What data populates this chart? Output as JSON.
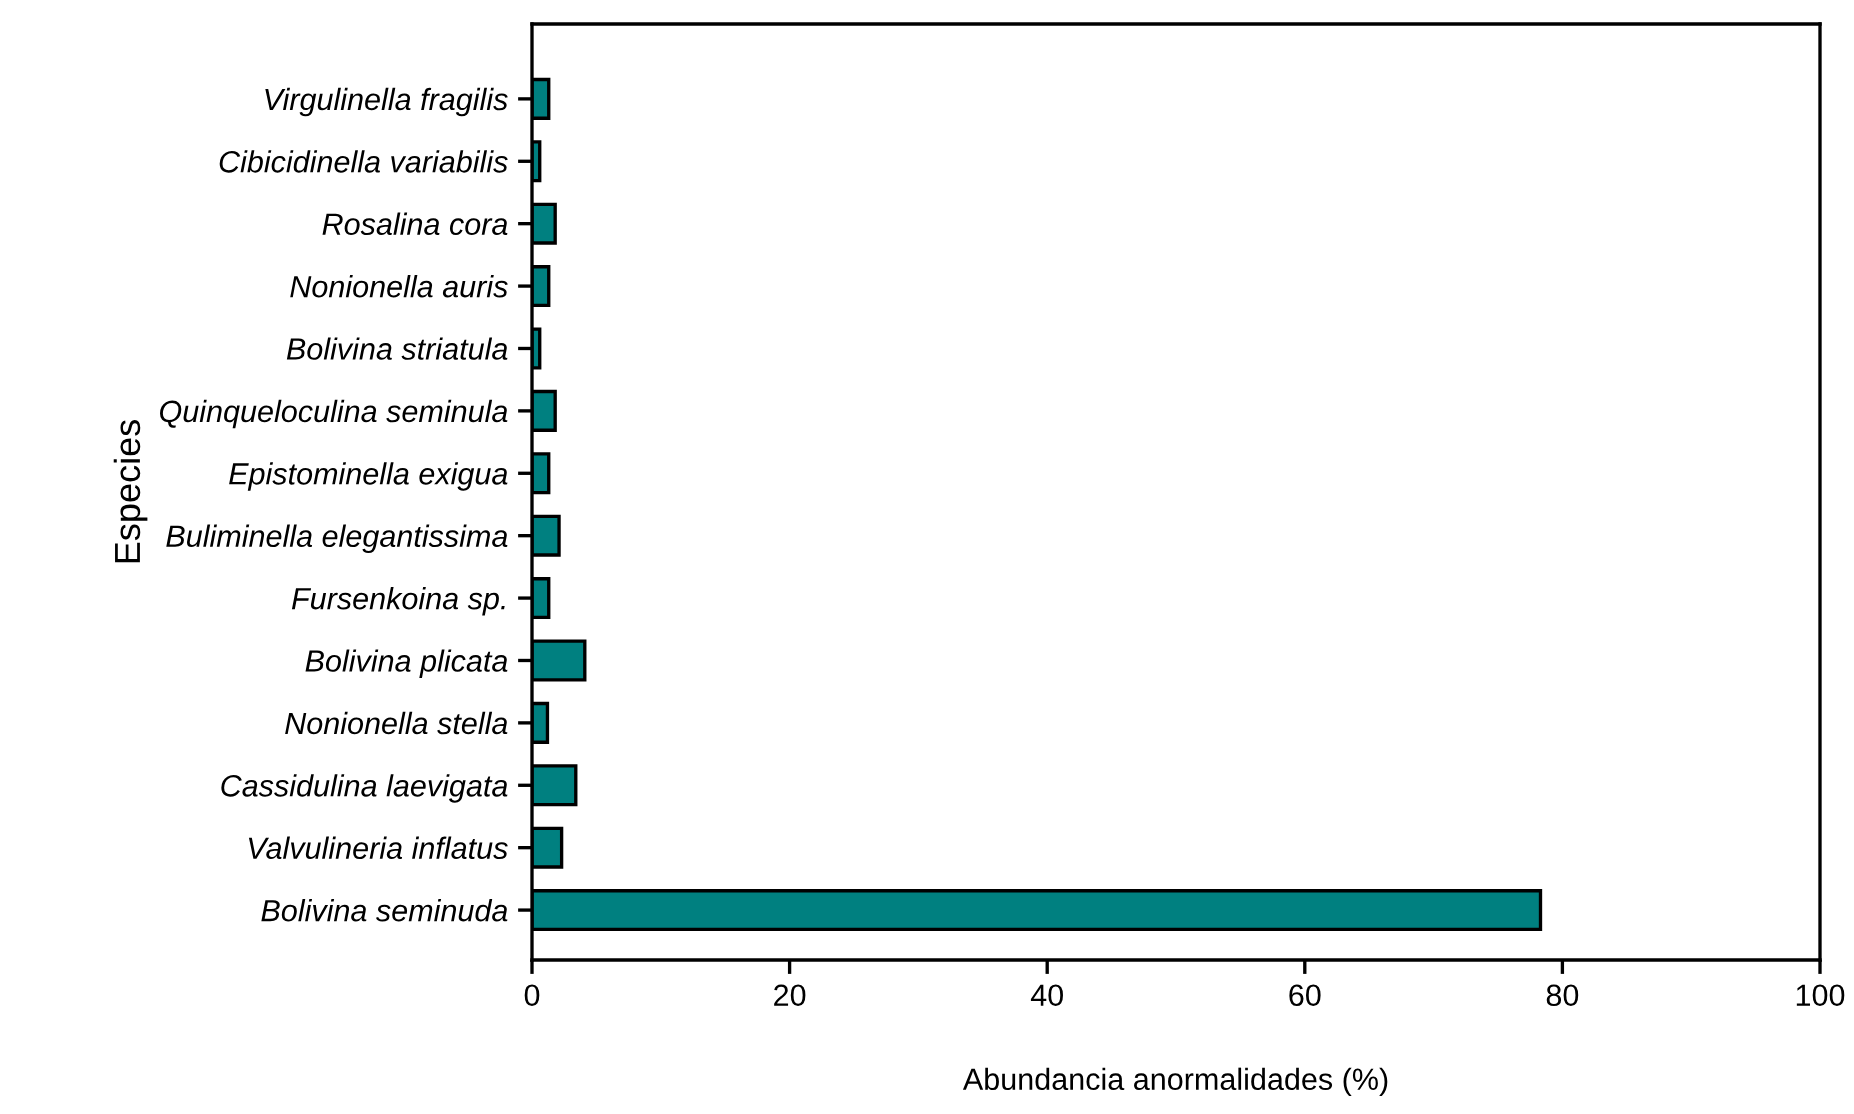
{
  "chart_data": {
    "type": "bar",
    "orientation": "horizontal",
    "xlabel": "Abundancia anormalidades (%)",
    "ylabel": "Especies",
    "categories": [
      "Virgulinella fragilis",
      "Cibicidinella variabilis",
      "Rosalina cora",
      "Nonionella auris",
      "Bolivina striatula",
      "Quinqueloculina seminula",
      "Epistominella exigua",
      "Buliminella elegantissima",
      "Fursenkoina sp.",
      "Bolivina plicata",
      "Nonionella stella",
      "Cassidulina laevigata",
      "Valvulineria inflatus",
      "Bolivina seminuda"
    ],
    "values": [
      1.3,
      0.6,
      1.8,
      1.3,
      0.6,
      1.8,
      1.3,
      2.1,
      1.3,
      4.1,
      1.2,
      3.4,
      2.3,
      78.3
    ],
    "color": "#008080",
    "xlim": [
      0,
      100
    ],
    "xticks": [
      0,
      20,
      40,
      60,
      80,
      100
    ],
    "grid": false,
    "legend": false
  }
}
